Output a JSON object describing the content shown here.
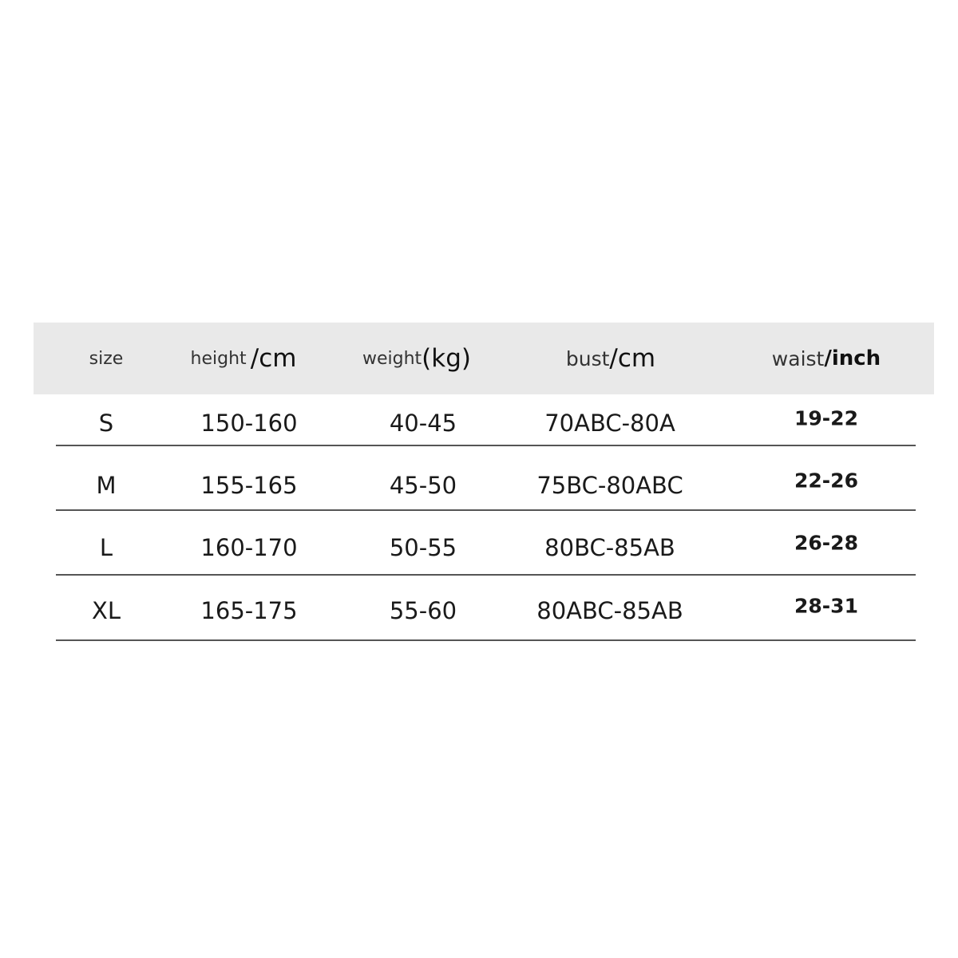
{
  "table": {
    "headers": [
      {
        "key": "size",
        "label": "size",
        "unit": ""
      },
      {
        "key": "height",
        "label": "height",
        "unit": "/cm"
      },
      {
        "key": "weight",
        "label": "weight",
        "unit": "(kg)"
      },
      {
        "key": "bust",
        "label": "bust",
        "unit": "/cm"
      },
      {
        "key": "waist",
        "label": "waist",
        "unit": "/inch"
      }
    ],
    "rows": [
      {
        "size": "S",
        "height": "150-160",
        "weight": "40-45",
        "bust": "70ABC-80A",
        "waist": "19-22"
      },
      {
        "size": "M",
        "height": "155-165",
        "weight": "45-50",
        "bust": "75BC-80ABC",
        "waist": "22-26"
      },
      {
        "size": "L",
        "height": "160-170",
        "weight": "50-55",
        "bust": "80BC-85AB",
        "waist": "26-28"
      },
      {
        "size": "XL",
        "height": "165-175",
        "weight": "55-60",
        "bust": "80ABC-85AB",
        "waist": "28-31"
      }
    ]
  },
  "colors": {
    "header_bg": "#e9e9e9",
    "divider": "#555555"
  }
}
